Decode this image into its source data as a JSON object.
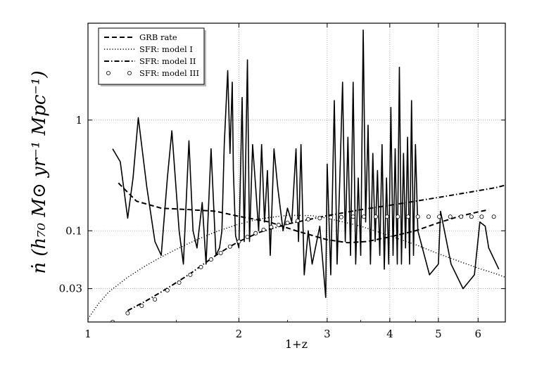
{
  "chart_data": {
    "type": "line",
    "title": "",
    "xlabel": "1+z",
    "ylabel": "ṅ (h₇₀ M⊙ yr⁻¹ Mpc⁻¹)",
    "xscale": "log",
    "yscale": "log",
    "xlim": [
      1,
      6.8
    ],
    "ylim": [
      0.015,
      7.5
    ],
    "x_ticks": [
      1,
      2,
      3,
      4,
      5,
      6
    ],
    "x_tick_labels": [
      "1",
      "2",
      "3",
      "4",
      "5",
      "6"
    ],
    "y_ticks": [
      0.03,
      0.1,
      1
    ],
    "y_tick_labels": [
      "0.03",
      "0.1",
      "1"
    ],
    "grid": true,
    "legend_position": "top-left",
    "series": [
      {
        "name": "",
        "style": "solid",
        "x": [
          1.12,
          1.16,
          1.2,
          1.23,
          1.26,
          1.31,
          1.36,
          1.4,
          1.44,
          1.47,
          1.52,
          1.55,
          1.59,
          1.62,
          1.65,
          1.69,
          1.72,
          1.76,
          1.8,
          1.83,
          1.85,
          1.87,
          1.9,
          1.92,
          1.94,
          1.95,
          1.97,
          2.0,
          2.03,
          2.05,
          2.08,
          2.1,
          2.13,
          2.16,
          2.19,
          2.22,
          2.25,
          2.28,
          2.31,
          2.35,
          2.39,
          2.45,
          2.5,
          2.55,
          2.6,
          2.63,
          2.66,
          2.7,
          2.75,
          2.8,
          2.9,
          2.98,
          3.0,
          3.05,
          3.1,
          3.14,
          3.18,
          3.22,
          3.26,
          3.3,
          3.34,
          3.38,
          3.42,
          3.46,
          3.5,
          3.54,
          3.58,
          3.62,
          3.66,
          3.7,
          3.74,
          3.78,
          3.82,
          3.86,
          3.9,
          3.94,
          3.98,
          4.02,
          4.06,
          4.1,
          4.14,
          4.18,
          4.22,
          4.26,
          4.3,
          4.34,
          4.38,
          4.42,
          4.46,
          4.5,
          4.55,
          4.8,
          5.0,
          5.05,
          5.3,
          5.6,
          5.9,
          6.05,
          6.2,
          6.3,
          6.6
        ],
        "y": [
          0.55,
          0.42,
          0.13,
          0.3,
          1.05,
          0.25,
          0.08,
          0.06,
          0.3,
          0.8,
          0.1,
          0.05,
          0.65,
          0.1,
          0.07,
          0.18,
          0.05,
          0.55,
          0.06,
          0.07,
          0.1,
          0.6,
          2.8,
          0.5,
          2.2,
          0.35,
          0.09,
          0.07,
          1.6,
          0.08,
          3.5,
          0.08,
          0.6,
          0.25,
          0.1,
          0.6,
          0.12,
          0.35,
          0.06,
          0.55,
          0.25,
          0.1,
          0.16,
          0.12,
          0.55,
          0.08,
          0.6,
          0.04,
          0.1,
          0.05,
          0.11,
          0.025,
          0.4,
          0.04,
          1.5,
          0.05,
          0.3,
          2.2,
          0.08,
          0.7,
          0.06,
          2.2,
          0.05,
          0.3,
          0.06,
          6.5,
          0.12,
          0.9,
          0.05,
          0.5,
          0.08,
          0.35,
          0.06,
          0.6,
          0.045,
          0.3,
          0.05,
          1.3,
          0.06,
          0.55,
          0.05,
          3.0,
          0.05,
          0.5,
          0.07,
          0.7,
          0.05,
          1.5,
          0.06,
          0.6,
          0.1,
          0.04,
          0.05,
          0.15,
          0.05,
          0.03,
          0.04,
          0.12,
          0.11,
          0.07,
          0.045
        ]
      },
      {
        "name": "GRB rate",
        "style": "dashed",
        "x": [
          1.15,
          1.25,
          1.4,
          1.6,
          1.8,
          2.0,
          2.3,
          2.6,
          3.0,
          3.3,
          3.6,
          4.0,
          4.5,
          5.0,
          5.5,
          6.0,
          6.3
        ],
        "y": [
          0.27,
          0.185,
          0.16,
          0.155,
          0.15,
          0.135,
          0.12,
          0.1,
          0.083,
          0.078,
          0.08,
          0.088,
          0.1,
          0.118,
          0.135,
          0.148,
          0.155
        ]
      },
      {
        "name": "SFR: model I",
        "style": "dotted",
        "x": [
          1.0,
          1.05,
          1.1,
          1.2,
          1.3,
          1.4,
          1.5,
          1.6,
          1.7,
          1.8,
          2.0,
          2.2,
          2.5,
          2.8,
          3.0,
          3.5,
          4.0,
          4.5,
          5.0,
          5.5,
          6.0,
          6.5,
          6.8
        ],
        "y": [
          0.016,
          0.022,
          0.028,
          0.038,
          0.048,
          0.058,
          0.068,
          0.078,
          0.088,
          0.098,
          0.115,
          0.128,
          0.138,
          0.137,
          0.13,
          0.11,
          0.09,
          0.075,
          0.062,
          0.053,
          0.046,
          0.041,
          0.038
        ]
      },
      {
        "name": "SFR: model II",
        "style": "dashdot",
        "x": [
          1.2,
          1.3,
          1.4,
          1.5,
          1.6,
          1.7,
          1.8,
          1.9,
          2.0,
          2.2,
          2.5,
          3.0,
          3.5,
          4.0,
          4.5,
          5.0,
          5.5,
          6.0,
          6.5,
          6.8
        ],
        "y": [
          0.019,
          0.023,
          0.028,
          0.034,
          0.041,
          0.05,
          0.06,
          0.07,
          0.08,
          0.097,
          0.115,
          0.137,
          0.155,
          0.17,
          0.185,
          0.2,
          0.215,
          0.23,
          0.245,
          0.258
        ]
      },
      {
        "name": "SFR: model III",
        "style": "circles",
        "x": [
          1.12,
          1.2,
          1.28,
          1.36,
          1.44,
          1.52,
          1.6,
          1.68,
          1.76,
          1.84,
          1.92,
          2.0,
          2.08,
          2.16,
          2.24,
          2.32,
          2.4,
          2.5,
          2.62,
          2.75,
          2.9,
          3.05,
          3.2,
          3.38,
          3.55,
          3.75,
          3.95,
          4.15,
          4.35,
          4.55,
          4.78,
          5.02,
          5.28,
          5.55,
          5.82,
          6.1,
          6.45
        ],
        "y": [
          0.015,
          0.018,
          0.021,
          0.024,
          0.029,
          0.034,
          0.04,
          0.047,
          0.055,
          0.063,
          0.072,
          0.08,
          0.088,
          0.095,
          0.102,
          0.108,
          0.113,
          0.118,
          0.123,
          0.127,
          0.13,
          0.132,
          0.133,
          0.134,
          0.134,
          0.134,
          0.134,
          0.134,
          0.134,
          0.134,
          0.134,
          0.134,
          0.134,
          0.134,
          0.134,
          0.134,
          0.134
        ]
      }
    ]
  }
}
